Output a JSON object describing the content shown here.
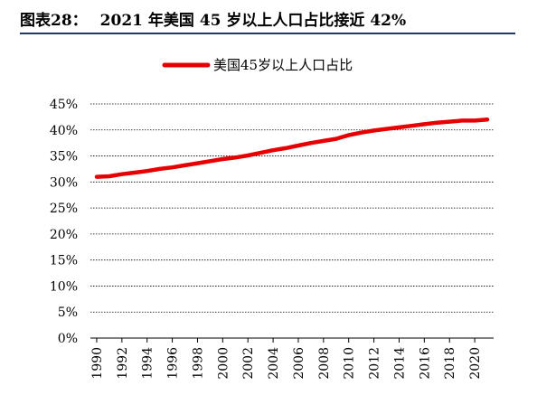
{
  "figure": {
    "label": "图表28：",
    "title": "2021 年美国 45 岁以上人口占比接近 42%"
  },
  "chart_data": {
    "type": "line",
    "title": "2021 年美国 45 岁以上人口占比接近 42%",
    "xlabel": "",
    "ylabel": "",
    "x": [
      1990,
      1991,
      1992,
      1993,
      1994,
      1995,
      1996,
      1997,
      1998,
      1999,
      2000,
      2001,
      2002,
      2003,
      2004,
      2005,
      2006,
      2007,
      2008,
      2009,
      2010,
      2011,
      2012,
      2013,
      2014,
      2015,
      2016,
      2017,
      2018,
      2019,
      2020,
      2021
    ],
    "x_tick_labels": [
      "1990",
      "1992",
      "1994",
      "1996",
      "1998",
      "2000",
      "2002",
      "2004",
      "2006",
      "2008",
      "2010",
      "2012",
      "2014",
      "2016",
      "2018",
      "2020"
    ],
    "y_tick_labels": [
      "0%",
      "5%",
      "10%",
      "15%",
      "20%",
      "25%",
      "30%",
      "35%",
      "40%",
      "45%"
    ],
    "ylim": [
      0,
      45
    ],
    "xlim": [
      1990,
      2021
    ],
    "grid": "horizontal",
    "legend_position": "top",
    "series": [
      {
        "name": "美国45岁以上人口占比",
        "color": "#e60000",
        "values": [
          31.0,
          31.1,
          31.5,
          31.8,
          32.1,
          32.5,
          32.8,
          33.2,
          33.6,
          34.0,
          34.4,
          34.7,
          35.1,
          35.6,
          36.1,
          36.5,
          37.0,
          37.5,
          37.9,
          38.3,
          39.0,
          39.5,
          39.9,
          40.2,
          40.5,
          40.8,
          41.1,
          41.4,
          41.6,
          41.8,
          41.8,
          42.0
        ]
      }
    ]
  }
}
